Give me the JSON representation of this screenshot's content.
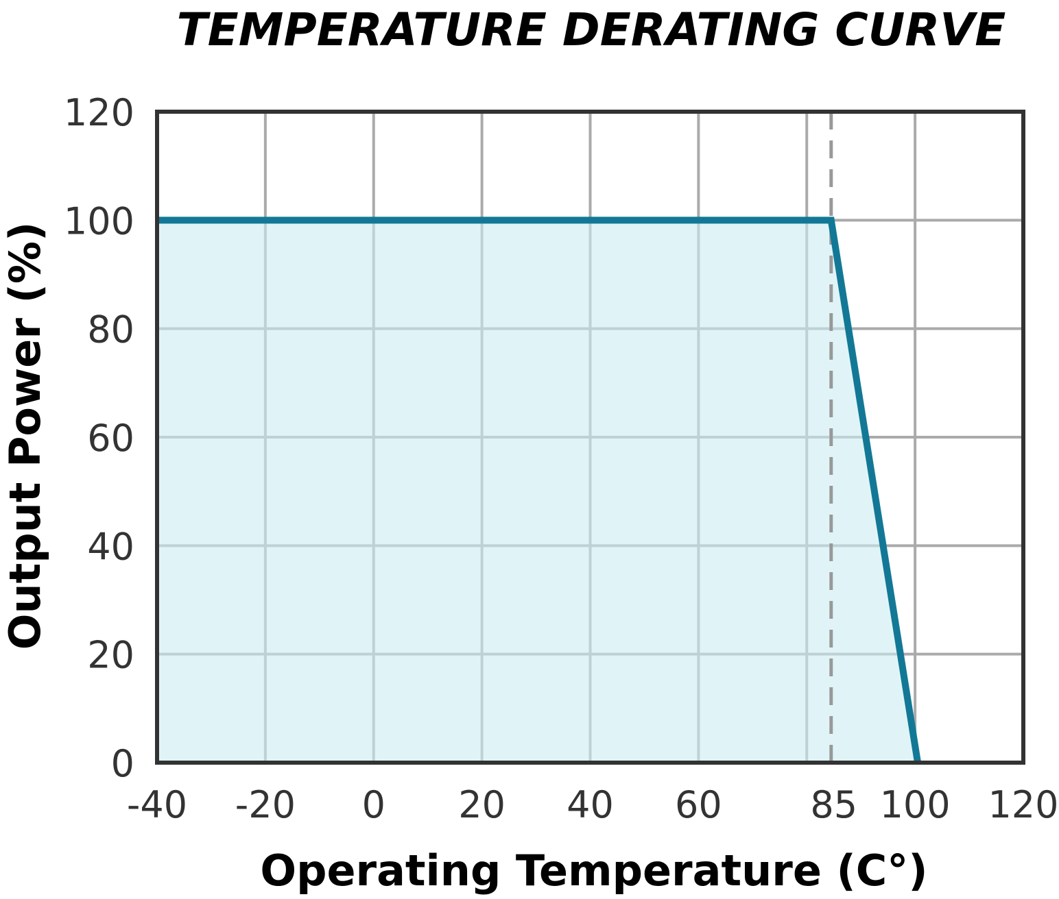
{
  "chart_data": {
    "type": "area",
    "title": "TEMPERATURE DERATING CURVE",
    "xlabel": "Operating Temperature (C°)",
    "ylabel": "Output Power (%)",
    "xlim": [
      -40,
      120
    ],
    "ylim": [
      0,
      120
    ],
    "x_ticks": [
      -40,
      -20,
      0,
      20,
      40,
      60,
      85,
      100,
      120
    ],
    "y_ticks": [
      0,
      20,
      40,
      60,
      80,
      100,
      120
    ],
    "x_gridlines": [
      -20,
      0,
      20,
      40,
      60,
      80,
      100
    ],
    "y_gridlines": [
      20,
      40,
      60,
      80,
      100
    ],
    "reference_line_x": 84.5,
    "grid": true,
    "series": [
      {
        "x": [
          -40,
          84.5,
          100.5
        ],
        "y": [
          100,
          100,
          0
        ]
      }
    ],
    "colors": {
      "line": "#137896",
      "fill": "#ccedf4",
      "grid": "#aaaaaa",
      "frame": "#333333",
      "reference": "#999999"
    }
  }
}
